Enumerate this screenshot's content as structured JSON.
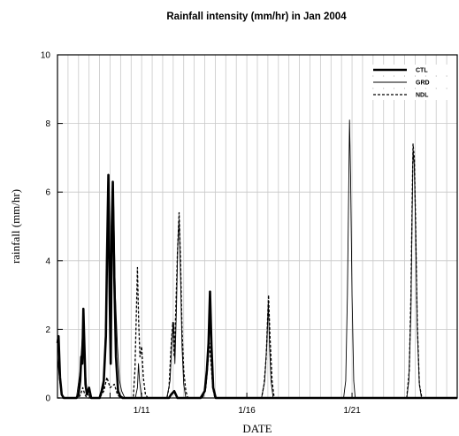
{
  "chart_data": {
    "type": "line",
    "title": "Rainfall intensity (mm/hr)  in Jan 2004",
    "xlabel": "DATE",
    "ylabel": "rainfall (mm/hr)",
    "xlim": [
      7,
      26
    ],
    "ylim": [
      0,
      10
    ],
    "yticks": [
      0,
      2,
      4,
      6,
      8,
      10
    ],
    "xticks": [
      {
        "x": 9.5,
        "label": ""
      },
      {
        "x": 11,
        "label": "1/11"
      },
      {
        "x": 16,
        "label": "1/16"
      },
      {
        "x": 21,
        "label": "1/21"
      }
    ],
    "vgrid_step": 0.5,
    "grid": true,
    "legend_position": "top-right",
    "series": [
      {
        "name": "CTL",
        "style": "thick",
        "color": "#000000",
        "points": [
          [
            7.0,
            1.6
          ],
          [
            7.05,
            1.8
          ],
          [
            7.12,
            0.6
          ],
          [
            7.2,
            0.1
          ],
          [
            7.3,
            0
          ],
          [
            7.9,
            0
          ],
          [
            8.0,
            0.1
          ],
          [
            8.08,
            0.5
          ],
          [
            8.13,
            1.2
          ],
          [
            8.18,
            1.0
          ],
          [
            8.23,
            2.6
          ],
          [
            8.28,
            1.5
          ],
          [
            8.33,
            0.4
          ],
          [
            8.4,
            0.1
          ],
          [
            8.5,
            0.3
          ],
          [
            8.6,
            0
          ],
          [
            9.0,
            0
          ],
          [
            9.1,
            0.2
          ],
          [
            9.2,
            0.5
          ],
          [
            9.3,
            1.8
          ],
          [
            9.35,
            4.0
          ],
          [
            9.42,
            6.5
          ],
          [
            9.48,
            3.0
          ],
          [
            9.53,
            1.0
          ],
          [
            9.58,
            5.0
          ],
          [
            9.63,
            6.3
          ],
          [
            9.7,
            3.5
          ],
          [
            9.78,
            1.2
          ],
          [
            9.88,
            0.2
          ],
          [
            9.98,
            0.05
          ],
          [
            10.1,
            0
          ],
          [
            12.3,
            0
          ],
          [
            12.4,
            0.1
          ],
          [
            12.55,
            0.2
          ],
          [
            12.7,
            0
          ],
          [
            13.8,
            0
          ],
          [
            14.0,
            0.2
          ],
          [
            14.1,
            0.8
          ],
          [
            14.18,
            1.6
          ],
          [
            14.25,
            3.1
          ],
          [
            14.32,
            1.5
          ],
          [
            14.4,
            0.3
          ],
          [
            14.52,
            0
          ],
          [
            26.0,
            0
          ]
        ]
      },
      {
        "name": "GRD",
        "style": "thin",
        "color": "#000000",
        "points": [
          [
            7.0,
            1.2
          ],
          [
            7.1,
            0.5
          ],
          [
            7.2,
            0.1
          ],
          [
            7.3,
            0
          ],
          [
            7.9,
            0
          ],
          [
            8.08,
            0.8
          ],
          [
            8.18,
            1.8
          ],
          [
            8.23,
            2.5
          ],
          [
            8.3,
            1.0
          ],
          [
            8.4,
            0.2
          ],
          [
            8.55,
            0
          ],
          [
            9.0,
            0
          ],
          [
            9.2,
            0.3
          ],
          [
            9.3,
            2.5
          ],
          [
            9.38,
            4.2
          ],
          [
            9.45,
            6.2
          ],
          [
            9.52,
            2.0
          ],
          [
            9.6,
            5.5
          ],
          [
            9.66,
            6.0
          ],
          [
            9.75,
            3.0
          ],
          [
            9.85,
            1.5
          ],
          [
            9.95,
            0.5
          ],
          [
            10.05,
            0.2
          ],
          [
            10.2,
            0
          ],
          [
            10.7,
            0
          ],
          [
            10.8,
            0.3
          ],
          [
            10.85,
            1.0
          ],
          [
            10.9,
            0.5
          ],
          [
            11.0,
            0
          ],
          [
            12.2,
            0
          ],
          [
            12.35,
            0.5
          ],
          [
            12.45,
            1.8
          ],
          [
            12.52,
            2.2
          ],
          [
            12.58,
            1.0
          ],
          [
            12.65,
            2.5
          ],
          [
            12.72,
            4.5
          ],
          [
            12.78,
            5.2
          ],
          [
            12.85,
            3.5
          ],
          [
            12.92,
            1.5
          ],
          [
            13.0,
            0.4
          ],
          [
            13.1,
            0
          ],
          [
            13.9,
            0
          ],
          [
            14.05,
            0.4
          ],
          [
            14.12,
            1.2
          ],
          [
            14.2,
            2.0
          ],
          [
            14.26,
            3.0
          ],
          [
            14.33,
            1.2
          ],
          [
            14.42,
            0.2
          ],
          [
            14.5,
            0
          ],
          [
            16.7,
            0
          ],
          [
            16.85,
            0.5
          ],
          [
            16.95,
            1.6
          ],
          [
            17.02,
            2.8
          ],
          [
            17.08,
            1.5
          ],
          [
            17.15,
            0.5
          ],
          [
            17.25,
            0
          ],
          [
            20.6,
            0
          ],
          [
            20.7,
            0.5
          ],
          [
            20.78,
            3.0
          ],
          [
            20.84,
            6.0
          ],
          [
            20.88,
            8.1
          ],
          [
            20.93,
            6.5
          ],
          [
            21.0,
            3.0
          ],
          [
            21.08,
            0.5
          ],
          [
            21.15,
            0
          ],
          [
            23.6,
            0
          ],
          [
            23.7,
            0.5
          ],
          [
            23.8,
            2.5
          ],
          [
            23.86,
            5.5
          ],
          [
            23.9,
            7.2
          ],
          [
            23.96,
            6.8
          ],
          [
            24.02,
            5.0
          ],
          [
            24.1,
            2.0
          ],
          [
            24.2,
            0.4
          ],
          [
            24.3,
            0
          ],
          [
            26.0,
            0
          ]
        ]
      },
      {
        "name": "NDL",
        "style": "dashed",
        "color": "#000000",
        "points": [
          [
            7.0,
            0
          ],
          [
            8.0,
            0
          ],
          [
            8.1,
            0.1
          ],
          [
            8.2,
            0.3
          ],
          [
            8.3,
            0.1
          ],
          [
            8.4,
            0
          ],
          [
            9.0,
            0
          ],
          [
            9.2,
            0.2
          ],
          [
            9.35,
            0.6
          ],
          [
            9.5,
            0.3
          ],
          [
            9.7,
            0.4
          ],
          [
            9.85,
            0.1
          ],
          [
            10.0,
            0
          ],
          [
            10.6,
            0
          ],
          [
            10.68,
            0.8
          ],
          [
            10.75,
            2.5
          ],
          [
            10.8,
            3.8
          ],
          [
            10.86,
            2.2
          ],
          [
            10.92,
            1.2
          ],
          [
            11.0,
            1.5
          ],
          [
            11.08,
            0.6
          ],
          [
            11.18,
            0.1
          ],
          [
            11.3,
            0
          ],
          [
            12.2,
            0
          ],
          [
            12.3,
            0.3
          ],
          [
            12.4,
            1.5
          ],
          [
            12.48,
            2.2
          ],
          [
            12.55,
            1.2
          ],
          [
            12.62,
            2.5
          ],
          [
            12.7,
            4.2
          ],
          [
            12.78,
            5.4
          ],
          [
            12.85,
            4.0
          ],
          [
            12.92,
            2.0
          ],
          [
            13.0,
            0.8
          ],
          [
            13.1,
            0.2
          ],
          [
            13.2,
            0
          ],
          [
            13.9,
            0
          ],
          [
            14.05,
            0.3
          ],
          [
            14.15,
            1.0
          ],
          [
            14.22,
            1.6
          ],
          [
            14.3,
            1.0
          ],
          [
            14.38,
            0.3
          ],
          [
            14.48,
            0
          ],
          [
            16.7,
            0
          ],
          [
            16.82,
            0.4
          ],
          [
            16.92,
            1.2
          ],
          [
            16.98,
            2.2
          ],
          [
            17.03,
            3.0
          ],
          [
            17.1,
            1.8
          ],
          [
            17.2,
            0.5
          ],
          [
            17.3,
            0
          ],
          [
            23.6,
            0
          ],
          [
            23.72,
            0.8
          ],
          [
            23.8,
            3.0
          ],
          [
            23.86,
            5.8
          ],
          [
            23.9,
            7.4
          ],
          [
            23.96,
            7.0
          ],
          [
            24.02,
            5.2
          ],
          [
            24.1,
            2.2
          ],
          [
            24.2,
            0.4
          ],
          [
            24.32,
            0
          ],
          [
            26.0,
            0
          ]
        ]
      }
    ]
  }
}
